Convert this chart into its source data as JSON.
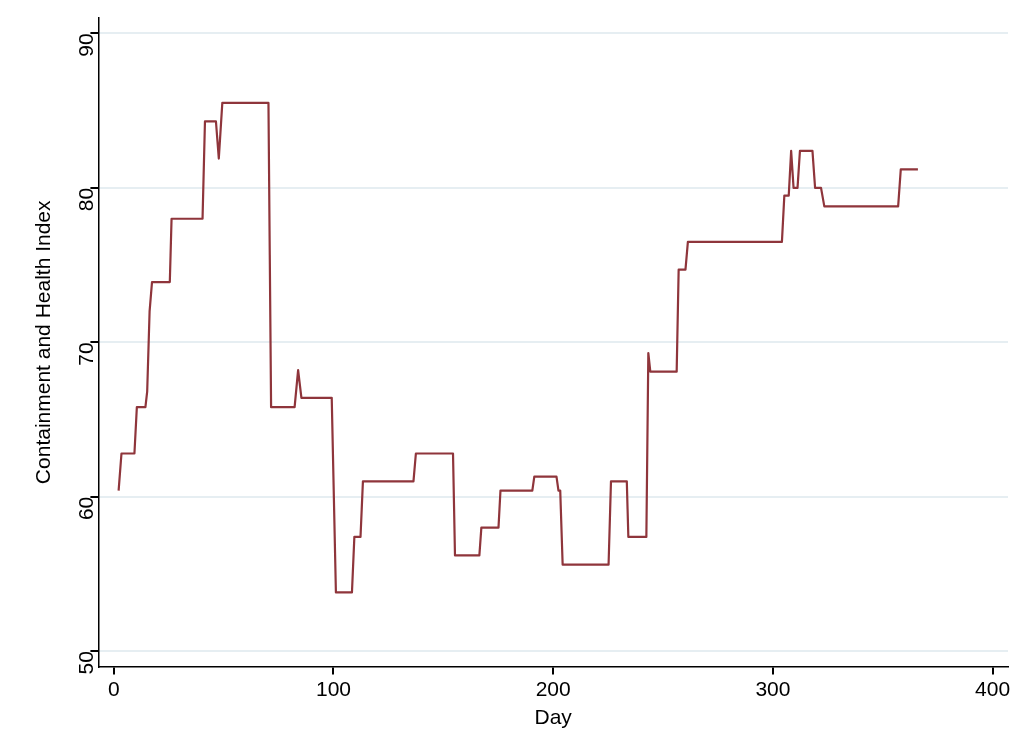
{
  "chart_data": {
    "type": "line",
    "xlabel": "Day",
    "ylabel": "Containment and Health Index",
    "series": [
      {
        "color": "#8f353b",
        "x": [
          2.2,
          3.5,
          9.4,
          10.5,
          14.4,
          15.2,
          16.3,
          17.4,
          25.5,
          26.3,
          40.4,
          41.5,
          46.5,
          47.8,
          49.4,
          70.4,
          71.6,
          82.3,
          83.9,
          85.4,
          99.2,
          101.1,
          108.4,
          109.5,
          112.3,
          113.4,
          136.4,
          137.5,
          154.4,
          155.3,
          166.4,
          167.3,
          175.1,
          176,
          190.5,
          191.4,
          201.5,
          202.4,
          203.2,
          204.3,
          225.2,
          226.3,
          233.5,
          234.2,
          242.4,
          243.3,
          244.2,
          256.2,
          257.1,
          260.2,
          261.3,
          304.1,
          305.2,
          307.2,
          308.3,
          309.4,
          311.2,
          312.3,
          318,
          319.2,
          321.9,
          323.4,
          357,
          358.2,
          366
        ],
        "values": [
          60.4,
          62.8,
          62.8,
          65.8,
          65.8,
          66.8,
          72.0,
          73.9,
          73.9,
          78.0,
          78.0,
          84.3,
          84.3,
          81.9,
          85.5,
          85.5,
          65.8,
          65.8,
          68.2,
          66.4,
          66.4,
          53.8,
          53.8,
          57.4,
          57.4,
          61.0,
          61.0,
          62.8,
          62.8,
          56.2,
          56.2,
          58.0,
          58.0,
          60.4,
          60.4,
          61.3,
          61.3,
          60.4,
          60.4,
          55.6,
          55.6,
          61.0,
          61.0,
          57.4,
          57.4,
          69.3,
          68.1,
          68.1,
          74.7,
          74.7,
          76.5,
          76.5,
          79.5,
          79.5,
          82.4,
          80.0,
          80.0,
          82.4,
          82.4,
          80.0,
          80.0,
          78.8,
          78.8,
          81.2,
          81.2
        ]
      }
    ],
    "xlim": [
      -7,
      407
    ],
    "xticks": [
      0,
      100,
      200,
      300,
      400
    ],
    "ylim": [
      49,
      91
    ],
    "yticks": [
      50,
      60,
      70,
      80,
      90
    ],
    "grid": "y",
    "legend": false,
    "marker": "none",
    "line_style": "solid"
  }
}
